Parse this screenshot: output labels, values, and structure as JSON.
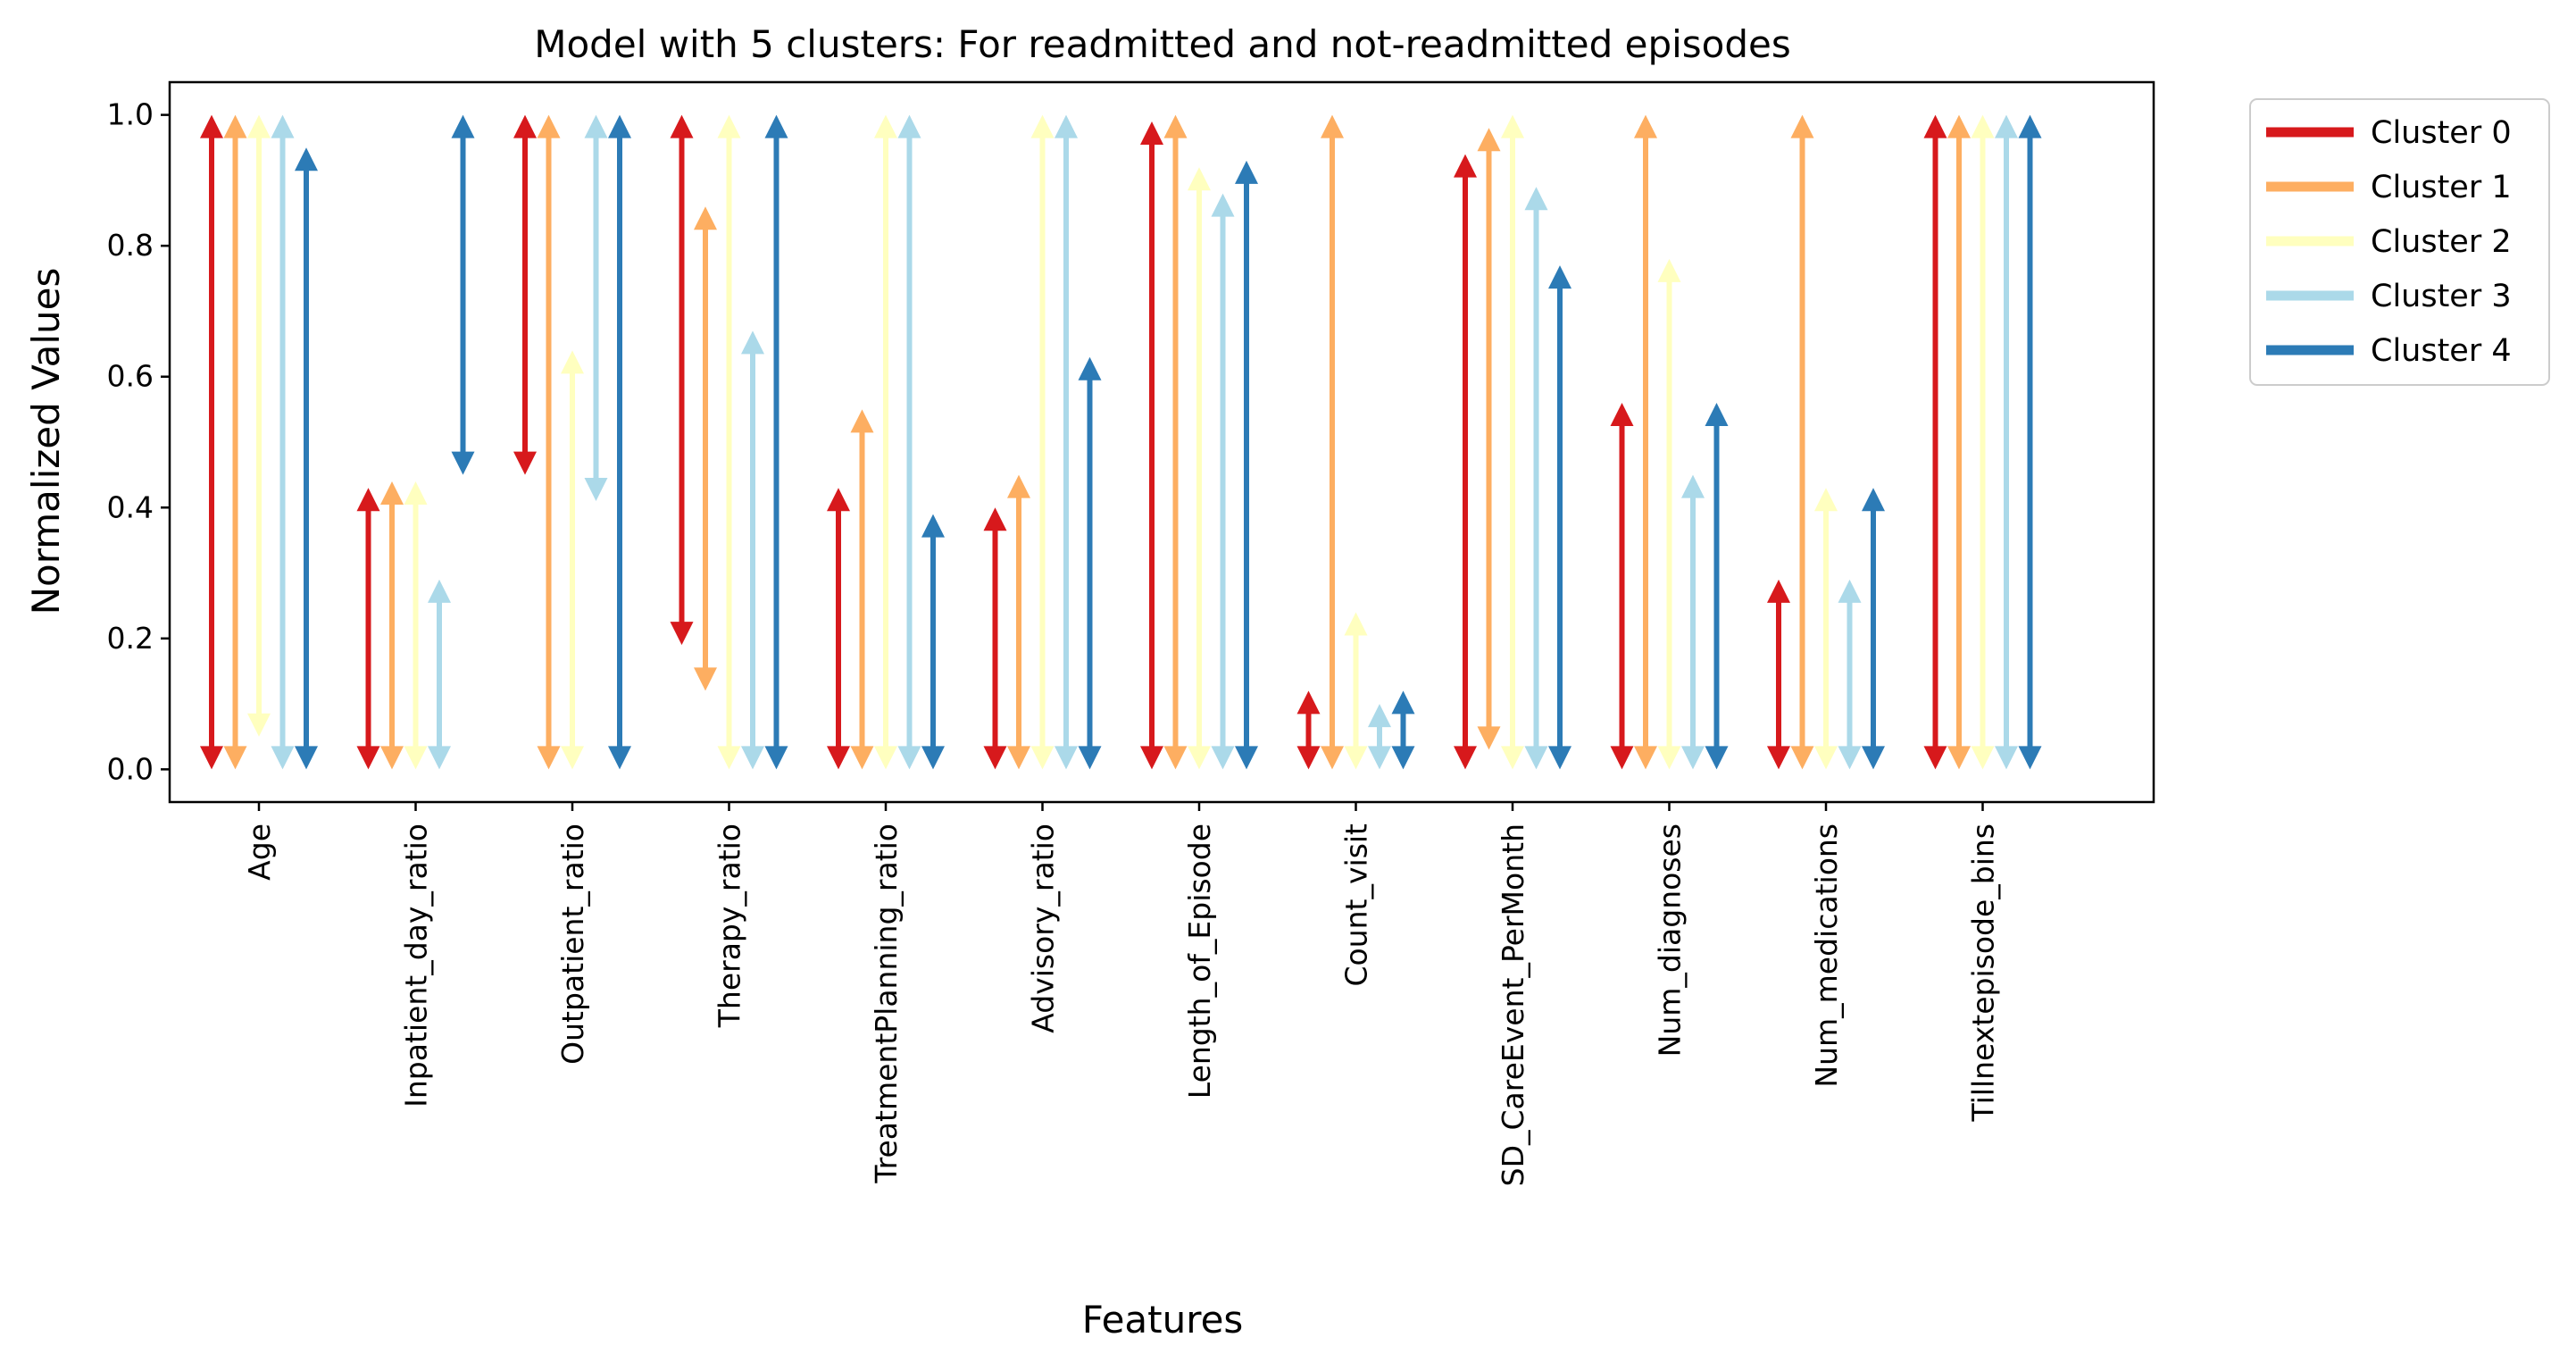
{
  "chart_data": {
    "type": "range-arrows",
    "title": "Model with 5 clusters: For readmitted and not-readmitted episodes",
    "xlabel": "Features",
    "ylabel": "Normalized Values",
    "ylim": [
      -0.05,
      1.05
    ],
    "yticks": [
      "0.0",
      "0.2",
      "0.4",
      "0.6",
      "0.8",
      "1.0"
    ],
    "grid": false,
    "legend_position": "outside-right-top",
    "categories": [
      "Age",
      "Inpatient_day_ratio",
      "Outpatient_ratio",
      "Therapy_ratio",
      "TreatmentPlanning_ratio",
      "Advisory_ratio",
      "Length_of_Episode",
      "Count_visit",
      "SD_CareEvent_PerMonth",
      "Num_diagnoses",
      "Num_medications",
      "Tillnextepisode_bins"
    ],
    "series": [
      {
        "name": "Cluster 0",
        "color": "#d7191c",
        "ranges": [
          [
            0.0,
            1.0
          ],
          [
            0.0,
            0.43
          ],
          [
            0.45,
            1.0
          ],
          [
            0.19,
            1.0
          ],
          [
            0.0,
            0.43
          ],
          [
            0.0,
            0.4
          ],
          [
            0.0,
            0.99
          ],
          [
            0.0,
            0.12
          ],
          [
            0.0,
            0.94
          ],
          [
            0.0,
            0.56
          ],
          [
            0.0,
            0.29
          ],
          [
            0.0,
            1.0
          ]
        ]
      },
      {
        "name": "Cluster 1",
        "color": "#fdae61",
        "ranges": [
          [
            0.0,
            1.0
          ],
          [
            0.0,
            0.44
          ],
          [
            0.0,
            1.0
          ],
          [
            0.12,
            0.86
          ],
          [
            0.0,
            0.55
          ],
          [
            0.0,
            0.45
          ],
          [
            0.0,
            1.0
          ],
          [
            0.0,
            1.0
          ],
          [
            0.03,
            0.98
          ],
          [
            0.0,
            1.0
          ],
          [
            0.0,
            1.0
          ],
          [
            0.0,
            1.0
          ]
        ]
      },
      {
        "name": "Cluster 2",
        "color": "#ffffbf",
        "ranges": [
          [
            0.05,
            1.0
          ],
          [
            0.0,
            0.44
          ],
          [
            0.0,
            0.64
          ],
          [
            0.0,
            1.0
          ],
          [
            0.0,
            1.0
          ],
          [
            0.0,
            1.0
          ],
          [
            0.0,
            0.92
          ],
          [
            0.0,
            0.24
          ],
          [
            0.0,
            1.0
          ],
          [
            0.0,
            0.78
          ],
          [
            0.0,
            0.43
          ],
          [
            0.0,
            1.0
          ]
        ]
      },
      {
        "name": "Cluster 3",
        "color": "#abd9e9",
        "ranges": [
          [
            0.0,
            1.0
          ],
          [
            0.0,
            0.29
          ],
          [
            0.41,
            1.0
          ],
          [
            0.0,
            0.67
          ],
          [
            0.0,
            1.0
          ],
          [
            0.0,
            1.0
          ],
          [
            0.0,
            0.88
          ],
          [
            0.0,
            0.1
          ],
          [
            0.0,
            0.89
          ],
          [
            0.0,
            0.45
          ],
          [
            0.0,
            0.29
          ],
          [
            0.0,
            1.0
          ]
        ]
      },
      {
        "name": "Cluster 4",
        "color": "#2c7bb6",
        "ranges": [
          [
            0.0,
            0.95
          ],
          [
            0.45,
            1.0
          ],
          [
            0.0,
            1.0
          ],
          [
            0.0,
            1.0
          ],
          [
            0.0,
            0.39
          ],
          [
            0.0,
            0.63
          ],
          [
            0.0,
            0.93
          ],
          [
            0.0,
            0.12
          ],
          [
            0.0,
            0.77
          ],
          [
            0.0,
            0.56
          ],
          [
            0.0,
            0.43
          ],
          [
            0.0,
            1.0
          ]
        ]
      }
    ]
  }
}
